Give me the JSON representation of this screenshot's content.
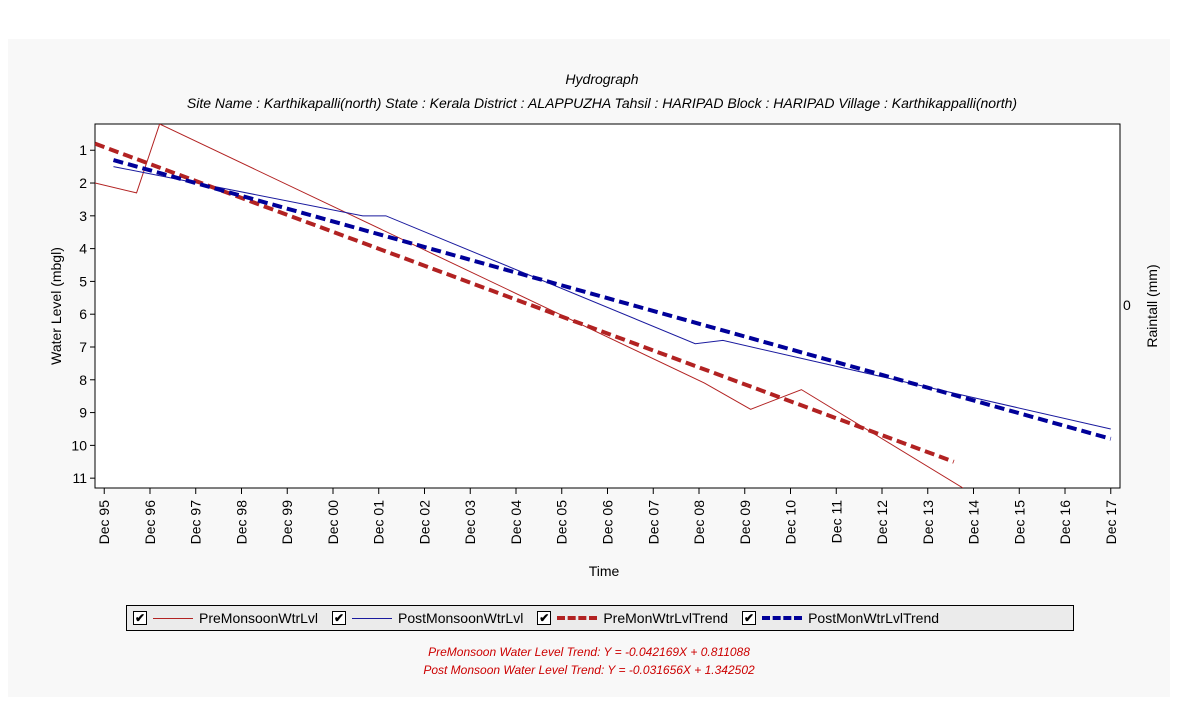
{
  "chart_data": {
    "type": "line",
    "title": "Hydrograph",
    "subtitle": "Site Name : Karthikapalli(north)  State : Kerala District : ALAPPUZHA  Tahsil : HARIPAD  Block : HARIPAD Village : Karthikappalli(north)",
    "xlabel": "Time",
    "ylabel": "Water Level (mbgl)",
    "y2label": "Raintall (mm)",
    "y2_ticks": [
      "0"
    ],
    "x_ticks": [
      "Dec 95",
      "Dec 96",
      "Dec 97",
      "Dec 98",
      "Dec 99",
      "Dec 00",
      "Dec 01",
      "Dec 02",
      "Dec 03",
      "Dec 04",
      "Dec 05",
      "Dec 06",
      "Dec 07",
      "Dec 08",
      "Dec 09",
      "Dec 10",
      "Dec 11",
      "Dec 12",
      "Dec 13",
      "Dec 14",
      "Dec 15",
      "Dec 16",
      "Dec 17"
    ],
    "y_ticks": [
      "1",
      "2",
      "3",
      "4",
      "5",
      "6",
      "7",
      "8",
      "9",
      "10",
      "11"
    ],
    "ylim_inverted": [
      0.2,
      11.3
    ],
    "xlim_years": [
      1995.0,
      2017.2
    ],
    "series": [
      {
        "name": "PreMonsoonWtrLvl",
        "color": "#b22222",
        "style": "solid",
        "points": [
          [
            1995.0,
            2.0
          ],
          [
            1995.9,
            2.3
          ],
          [
            1996.4,
            0.2
          ],
          [
            2008.2,
            8.1
          ],
          [
            2009.2,
            8.9
          ],
          [
            2010.3,
            8.3
          ],
          [
            2013.8,
            11.3
          ]
        ]
      },
      {
        "name": "PostMonsoonWtrLvl",
        "color": "#1a1a9e",
        "style": "solid",
        "points": [
          [
            1995.4,
            1.5
          ],
          [
            2000.8,
            3.0
          ],
          [
            2001.3,
            3.0
          ],
          [
            2008.0,
            6.9
          ],
          [
            2008.6,
            6.8
          ],
          [
            2017.0,
            9.5
          ]
        ]
      },
      {
        "name": "PreMonWtrLvlTrend",
        "color": "#b22222",
        "style": "dashed",
        "points": [
          [
            1995.0,
            0.8
          ],
          [
            2013.6,
            10.5
          ]
        ]
      },
      {
        "name": "PostMonWtrLvlTrend",
        "color": "#000099",
        "style": "dashed",
        "points": [
          [
            1995.4,
            1.3
          ],
          [
            2017.0,
            9.8
          ]
        ]
      }
    ],
    "legend_placement": "bottom",
    "grid": false
  },
  "legend": {
    "check": "✔",
    "items": [
      "PreMonsoonWtrLvl",
      "PostMonsoonWtrLvl",
      "PreMonWtrLvlTrend",
      "PostMonWtrLvlTrend"
    ]
  },
  "equations": {
    "pre": "PreMonsoon Water Level Trend: Y = -0.042169X + 0.811088",
    "post": "Post Monsoon Water Level Trend: Y = -0.031656X + 1.342502"
  }
}
